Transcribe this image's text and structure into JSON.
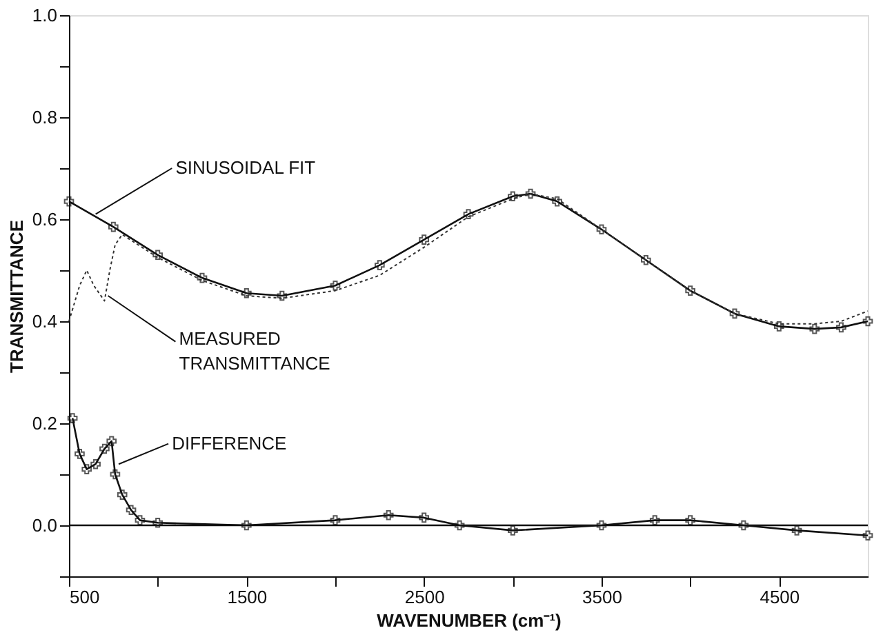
{
  "chart_data": {
    "type": "line",
    "xlabel": "WAVENUMBER (cm⁻¹)",
    "ylabel": "TRANSMITTANCE",
    "xlim": [
      500,
      5000
    ],
    "ylim": [
      -0.1,
      1.0
    ],
    "xticks": [
      500,
      {
        "value": 1000,
        "label": null
      },
      1500,
      {
        "value": 2000,
        "label": null
      },
      2500,
      {
        "value": 3000,
        "label": null
      },
      3500,
      {
        "value": 4000,
        "label": null
      },
      4500
    ],
    "yticks": [
      {
        "value": -0.1,
        "label": null
      },
      {
        "value": 0,
        "label": "0.0"
      },
      {
        "value": 0.1,
        "label": null
      },
      {
        "value": 0.2,
        "label": "0.2"
      },
      {
        "value": 0.3,
        "label": null
      },
      {
        "value": 0.4,
        "label": "0.4"
      },
      {
        "value": 0.5,
        "label": null
      },
      {
        "value": 0.6,
        "label": "0.6"
      },
      {
        "value": 0.7,
        "label": null
      },
      {
        "value": 0.8,
        "label": "0.8"
      },
      {
        "value": 0.9,
        "label": null
      },
      {
        "value": 1.0,
        "label": "1.0"
      }
    ],
    "grid": false,
    "series": [
      {
        "color": "#111111",
        "marker": "cross",
        "line_style": "solid",
        "x": [
          500,
          750,
          1000,
          1250,
          1500,
          1700,
          2000,
          2250,
          2500,
          2750,
          3000,
          3100,
          3250,
          3500,
          3750,
          4000,
          4250,
          4500,
          4700,
          4850,
          5000
        ],
        "values": [
          0.635,
          0.585,
          0.53,
          0.485,
          0.455,
          0.45,
          0.47,
          0.51,
          0.56,
          0.61,
          0.645,
          0.65,
          0.635,
          0.58,
          0.52,
          0.46,
          0.415,
          0.39,
          0.385,
          0.388,
          0.4
        ]
      },
      {
        "color": "#333333",
        "marker": "none",
        "line_style": "dotted",
        "x": [
          500,
          560,
          600,
          640,
          700,
          730,
          760,
          800,
          1000,
          1250,
          1500,
          1700,
          2000,
          2250,
          2500,
          2750,
          3000,
          3100,
          3250,
          3500,
          3750,
          4000,
          4250,
          4500,
          4700,
          4850,
          5000
        ],
        "values": [
          0.4,
          0.47,
          0.5,
          0.47,
          0.44,
          0.5,
          0.55,
          0.57,
          0.525,
          0.48,
          0.45,
          0.445,
          0.46,
          0.49,
          0.545,
          0.605,
          0.64,
          0.65,
          0.64,
          0.58,
          0.52,
          0.46,
          0.415,
          0.395,
          0.395,
          0.4,
          0.42
        ]
      },
      {
        "color": "#111111",
        "marker": "cross",
        "line_style": "solid",
        "x": [
          520,
          560,
          600,
          650,
          700,
          740,
          760,
          800,
          850,
          900,
          1000,
          1500,
          2000,
          2300,
          2500,
          2700,
          3000,
          3500,
          3800,
          4000,
          4300,
          4600,
          5000
        ],
        "values": [
          0.21,
          0.14,
          0.11,
          0.12,
          0.15,
          0.165,
          0.1,
          0.06,
          0.03,
          0.01,
          0.005,
          0.0,
          0.01,
          0.02,
          0.015,
          0.0,
          -0.01,
          0.0,
          0.01,
          0.01,
          0.0,
          -0.01,
          -0.02
        ]
      }
    ],
    "ref_lines": [
      {
        "axis": "y",
        "value": 0,
        "color": "#111111"
      }
    ],
    "annotations": [
      {
        "text": "SINUSOIDAL FIT",
        "x": 650,
        "y": 0.61
      },
      {
        "text": "MEASURED\nTRANSMITTANCE",
        "x": 720,
        "y": 0.45
      },
      {
        "text": "DIFFERENCE",
        "x": 780,
        "y": 0.12
      }
    ]
  }
}
